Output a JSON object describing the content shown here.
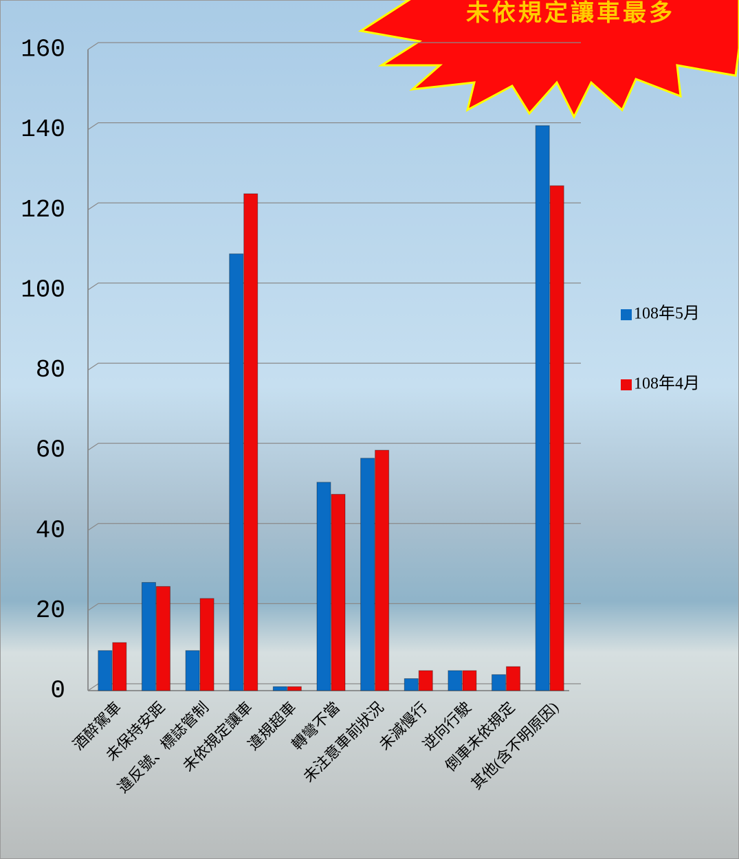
{
  "chart_data": {
    "type": "bar",
    "annotation": "未依規定讓車最多",
    "categories": [
      "酒醉駕車",
      "未保持安距",
      "違反號、標誌管制",
      "未依規定讓車",
      "違規超車",
      "轉彎不當",
      "未注意車前狀況",
      "未減慢行",
      "逆向行駛",
      "倒車未依規定",
      "其他(含不明原因)"
    ],
    "series": [
      {
        "name": "108年5月",
        "color": "#0a6cc4",
        "values": [
          10,
          27,
          10,
          109,
          1,
          52,
          58,
          3,
          5,
          4,
          141
        ]
      },
      {
        "name": "108年4月",
        "color": "#ee0a0a",
        "values": [
          12,
          26,
          23,
          124,
          1,
          49,
          60,
          5,
          5,
          6,
          126
        ]
      }
    ],
    "ylim": [
      0,
      160
    ],
    "yticks": [
      0,
      20,
      40,
      60,
      80,
      100,
      120,
      140,
      160
    ],
    "grid": true
  }
}
